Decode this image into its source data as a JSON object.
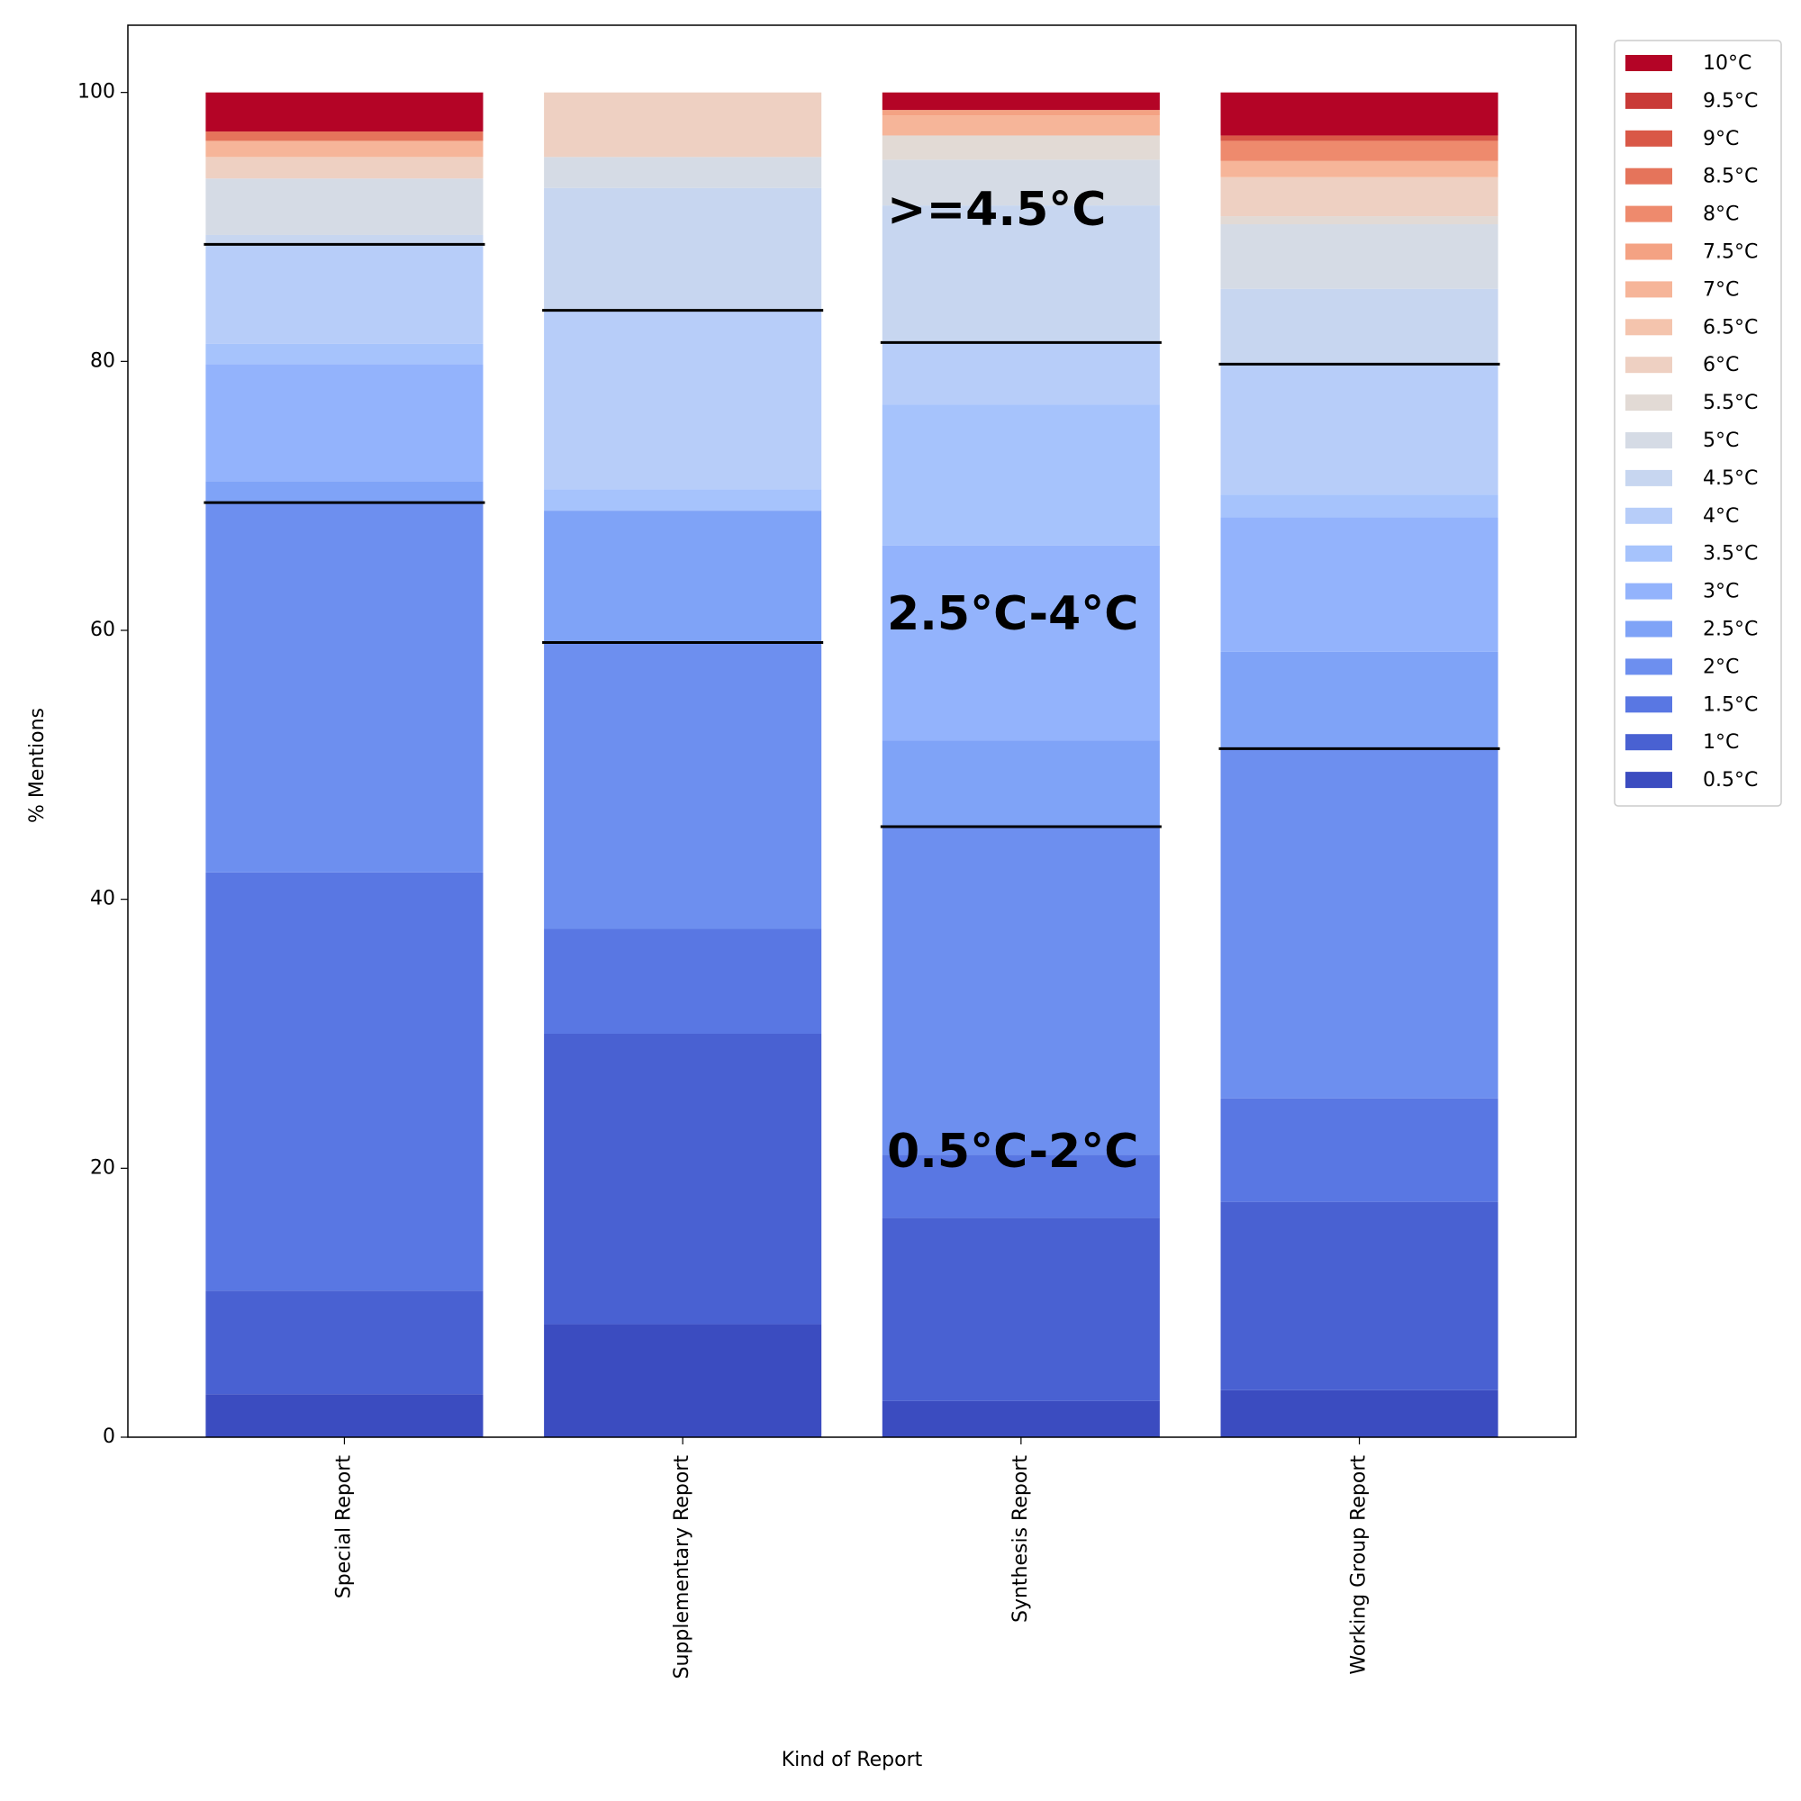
{
  "chart_data": {
    "type": "stacked_bar",
    "x_label": "Kind of Report",
    "y_label": "% Mentions",
    "categories": [
      "Special Report",
      "Supplementary Report",
      "Synthesis Report",
      "Working Group Report"
    ],
    "ylim": [
      0,
      105
    ],
    "yticks": [
      0,
      20,
      40,
      60,
      80,
      100
    ],
    "annotations": [
      ">=4.5°C",
      "2.5°C-4°C",
      "0.5°C-2°C"
    ],
    "legend_position": "outside right",
    "series": [
      {
        "name": "0.5°C",
        "color": "#3b4cc0",
        "values": [
          3.2,
          8.4,
          2.7,
          3.5
        ]
      },
      {
        "name": "1°C",
        "color": "#4961d2",
        "values": [
          7.7,
          21.6,
          13.6,
          14.0
        ]
      },
      {
        "name": "1.5°C",
        "color": "#5977e3",
        "values": [
          31.1,
          7.8,
          4.7,
          7.7
        ]
      },
      {
        "name": "2°C",
        "color": "#6d8fef",
        "values": [
          27.5,
          21.3,
          24.4,
          26.0
        ]
      },
      {
        "name": "2.5°C",
        "color": "#7fa3f7",
        "values": [
          1.6,
          9.8,
          6.4,
          7.2
        ]
      },
      {
        "name": "3°C",
        "color": "#93b3fc",
        "values": [
          8.7,
          0,
          14.5,
          10.0
        ]
      },
      {
        "name": "3.5°C",
        "color": "#a6c3fc",
        "values": [
          1.5,
          1.6,
          10.5,
          1.7
        ]
      },
      {
        "name": "4°C",
        "color": "#b7cdf9",
        "values": [
          7.4,
          13.3,
          4.6,
          9.7
        ]
      },
      {
        "name": "4.5°C",
        "color": "#c7d6f0",
        "values": [
          0.7,
          9.1,
          10.2,
          5.6
        ]
      },
      {
        "name": "5°C",
        "color": "#d5dbe5",
        "values": [
          4.2,
          2.3,
          3.4,
          4.8
        ]
      },
      {
        "name": "5.5°C",
        "color": "#e2dad5",
        "values": [
          0,
          0,
          1.8,
          0.6
        ]
      },
      {
        "name": "6°C",
        "color": "#eed0c2",
        "values": [
          1.6,
          4.8,
          0,
          2.9
        ]
      },
      {
        "name": "6.5°C",
        "color": "#f4c4ad",
        "values": [
          0,
          0,
          0,
          0
        ]
      },
      {
        "name": "7°C",
        "color": "#f6b599",
        "values": [
          1.2,
          0,
          1.5,
          1.2
        ]
      },
      {
        "name": "7.5°C",
        "color": "#f4a283",
        "values": [
          0,
          0,
          0.4,
          0
        ]
      },
      {
        "name": "8°C",
        "color": "#ee8a6d",
        "values": [
          0,
          0,
          0,
          1.5
        ]
      },
      {
        "name": "8.5°C",
        "color": "#e5745b",
        "values": [
          0.7,
          0,
          0,
          0
        ]
      },
      {
        "name": "9°C",
        "color": "#d95847",
        "values": [
          0,
          0,
          0,
          0.4
        ]
      },
      {
        "name": "9.5°C",
        "color": "#c93a37",
        "values": [
          0,
          0,
          0,
          0
        ]
      },
      {
        "name": "10°C",
        "color": "#b40426",
        "values": [
          2.9,
          0,
          1.3,
          3.2
        ]
      }
    ]
  }
}
